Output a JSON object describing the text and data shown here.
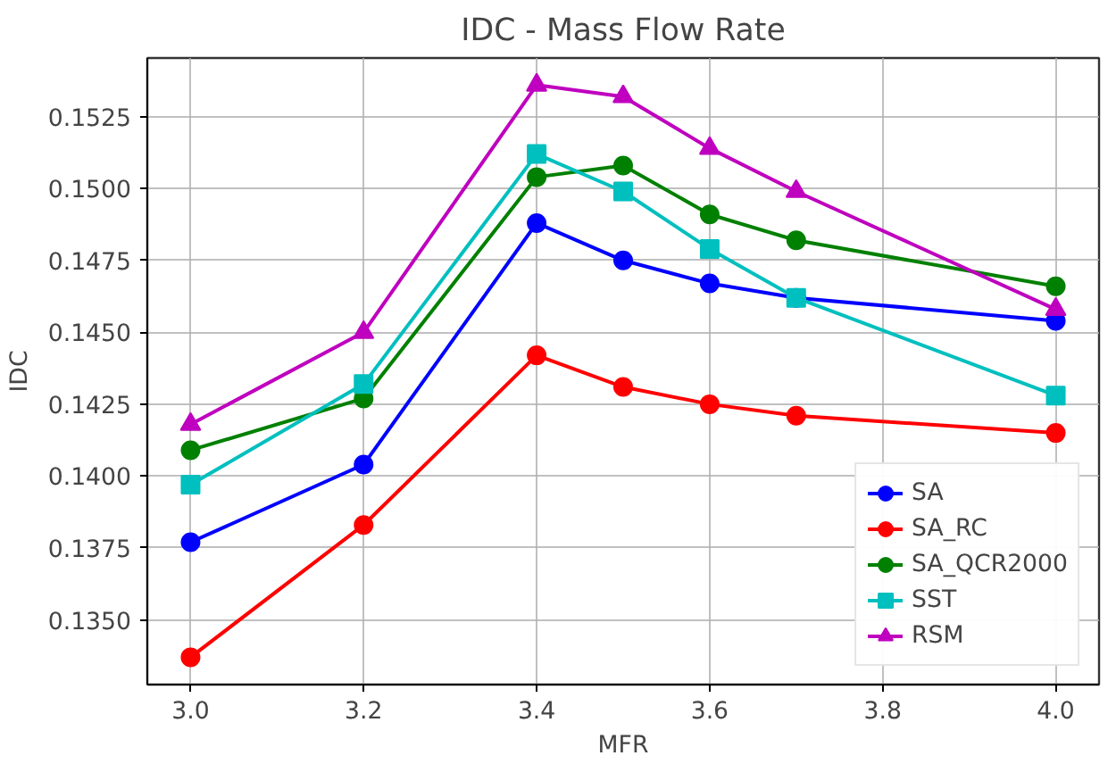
{
  "chart_data": {
    "type": "line",
    "title": "IDC - Mass Flow Rate",
    "xlabel": "MFR",
    "ylabel": "IDC",
    "x": [
      3.0,
      3.2,
      3.4,
      3.5,
      3.6,
      3.7,
      4.0
    ],
    "series": [
      {
        "name": "SA",
        "color": "#0000ff",
        "marker": "circle",
        "values": [
          0.1377,
          0.1404,
          0.1488,
          0.1475,
          0.1467,
          0.1462,
          0.1454
        ]
      },
      {
        "name": "SA_RC",
        "color": "#ff0000",
        "marker": "circle",
        "values": [
          0.1337,
          0.1383,
          0.1442,
          0.1431,
          0.1425,
          0.1421,
          0.1415
        ]
      },
      {
        "name": "SA_QCR2000",
        "color": "#008000",
        "marker": "circle",
        "values": [
          0.1409,
          0.1427,
          0.1504,
          0.1508,
          0.1491,
          0.1482,
          0.1466
        ]
      },
      {
        "name": "SST",
        "color": "#00bfbf",
        "marker": "square",
        "values": [
          0.1397,
          0.1432,
          0.1512,
          0.1499,
          0.1479,
          0.1462,
          0.1428
        ]
      },
      {
        "name": "RSM",
        "color": "#bf00bf",
        "marker": "triangle",
        "values": [
          0.1418,
          0.145,
          0.1536,
          0.1532,
          0.1514,
          0.1499,
          0.1458
        ]
      }
    ],
    "xlim": [
      2.95,
      4.05
    ],
    "xticks": [
      {
        "value": 3.0,
        "label": "3.0"
      },
      3.2,
      3.4,
      3.6,
      3.8,
      {
        "value": 4.0,
        "label": "4.0"
      }
    ],
    "ylim": [
      0.13275,
      0.15454
    ],
    "yticks": [
      {
        "value": 0.135,
        "label": "0.1350"
      },
      0.1375,
      {
        "value": 0.14,
        "label": "0.1400"
      },
      0.1425,
      {
        "value": 0.145,
        "label": "0.1450"
      },
      0.1475,
      {
        "value": 0.15,
        "label": "0.1500"
      },
      0.1525
    ],
    "grid": true,
    "legend": "bottom right",
    "line_style": "solid"
  }
}
